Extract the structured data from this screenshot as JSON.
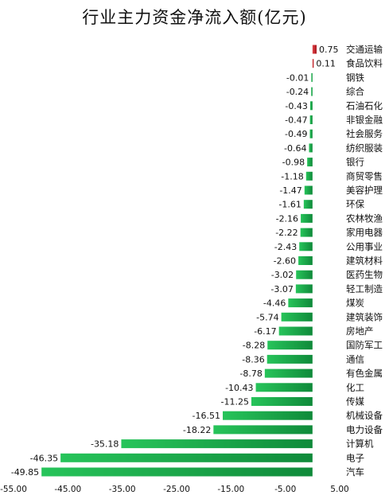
{
  "chart_data": {
    "type": "bar",
    "orientation": "horizontal",
    "title": "行业主力资金净流入额(亿元)",
    "xlabel": "",
    "ylabel": "",
    "xlim": [
      -55,
      5
    ],
    "xticks": [
      -55,
      -45,
      -35,
      -25,
      -15,
      -5,
      5
    ],
    "grid": false,
    "colors": {
      "positive": "#c0171c",
      "negative": "#1aa84a"
    },
    "categories": [
      "交通运输",
      "食品饮料",
      "钢铁",
      "综合",
      "石油石化",
      "非银金融",
      "社会服务",
      "纺织服装",
      "银行",
      "商贸零售",
      "美容护理",
      "环保",
      "农林牧渔",
      "家用电器",
      "公用事业",
      "建筑材料",
      "医药生物",
      "轻工制造",
      "煤炭",
      "建筑装饰",
      "房地产",
      "国防军工",
      "通信",
      "有色金属",
      "化工",
      "传媒",
      "机械设备",
      "电力设备",
      "计算机",
      "电子",
      "汽车"
    ],
    "values": [
      0.75,
      0.11,
      -0.01,
      -0.24,
      -0.43,
      -0.47,
      -0.49,
      -0.64,
      -0.98,
      -1.18,
      -1.47,
      -1.61,
      -2.16,
      -2.22,
      -2.43,
      -2.6,
      -3.02,
      -3.07,
      -4.46,
      -5.74,
      -6.17,
      -8.28,
      -8.36,
      -8.78,
      -10.43,
      -11.25,
      -16.51,
      -18.22,
      -35.18,
      -46.35,
      -49.85
    ]
  }
}
